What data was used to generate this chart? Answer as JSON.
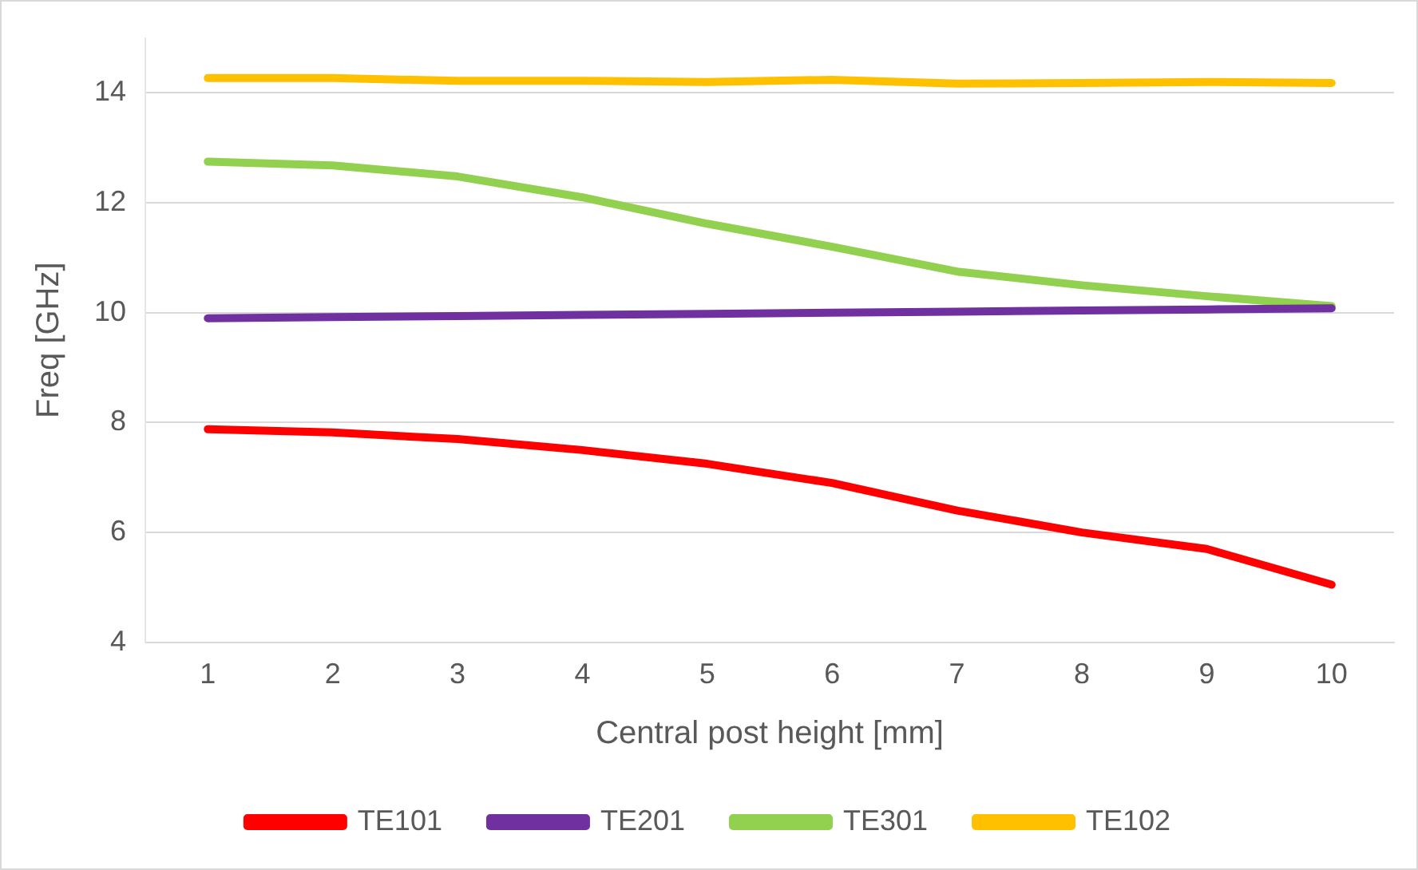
{
  "chart_data": {
    "type": "line",
    "xlabel": "Central post height [mm]",
    "ylabel": "Freq [GHz]",
    "categories": [
      "1",
      "2",
      "3",
      "4",
      "5",
      "6",
      "7",
      "8",
      "9",
      "10"
    ],
    "ylim": [
      4,
      15
    ],
    "yticks": [
      4,
      6,
      8,
      10,
      12,
      14
    ],
    "grid": "y",
    "legend": "bottom",
    "marker": "none",
    "line_style": "solid",
    "series": [
      {
        "name": "TE101",
        "color": "#ff0000",
        "values": [
          7.88,
          7.82,
          7.7,
          7.5,
          7.25,
          6.9,
          6.4,
          6.0,
          5.7,
          5.05
        ]
      },
      {
        "name": "TE201",
        "color": "#7030a0",
        "values": [
          9.9,
          9.92,
          9.94,
          9.96,
          9.98,
          10.0,
          10.02,
          10.04,
          10.06,
          10.08
        ]
      },
      {
        "name": "TE301",
        "color": "#92d050",
        "values": [
          12.75,
          12.68,
          12.48,
          12.1,
          11.62,
          11.2,
          10.75,
          10.5,
          10.3,
          10.12
        ]
      },
      {
        "name": "TE102",
        "color": "#ffc000",
        "values": [
          14.27,
          14.27,
          14.22,
          14.22,
          14.2,
          14.24,
          14.17,
          14.18,
          14.2,
          14.18
        ]
      }
    ]
  }
}
